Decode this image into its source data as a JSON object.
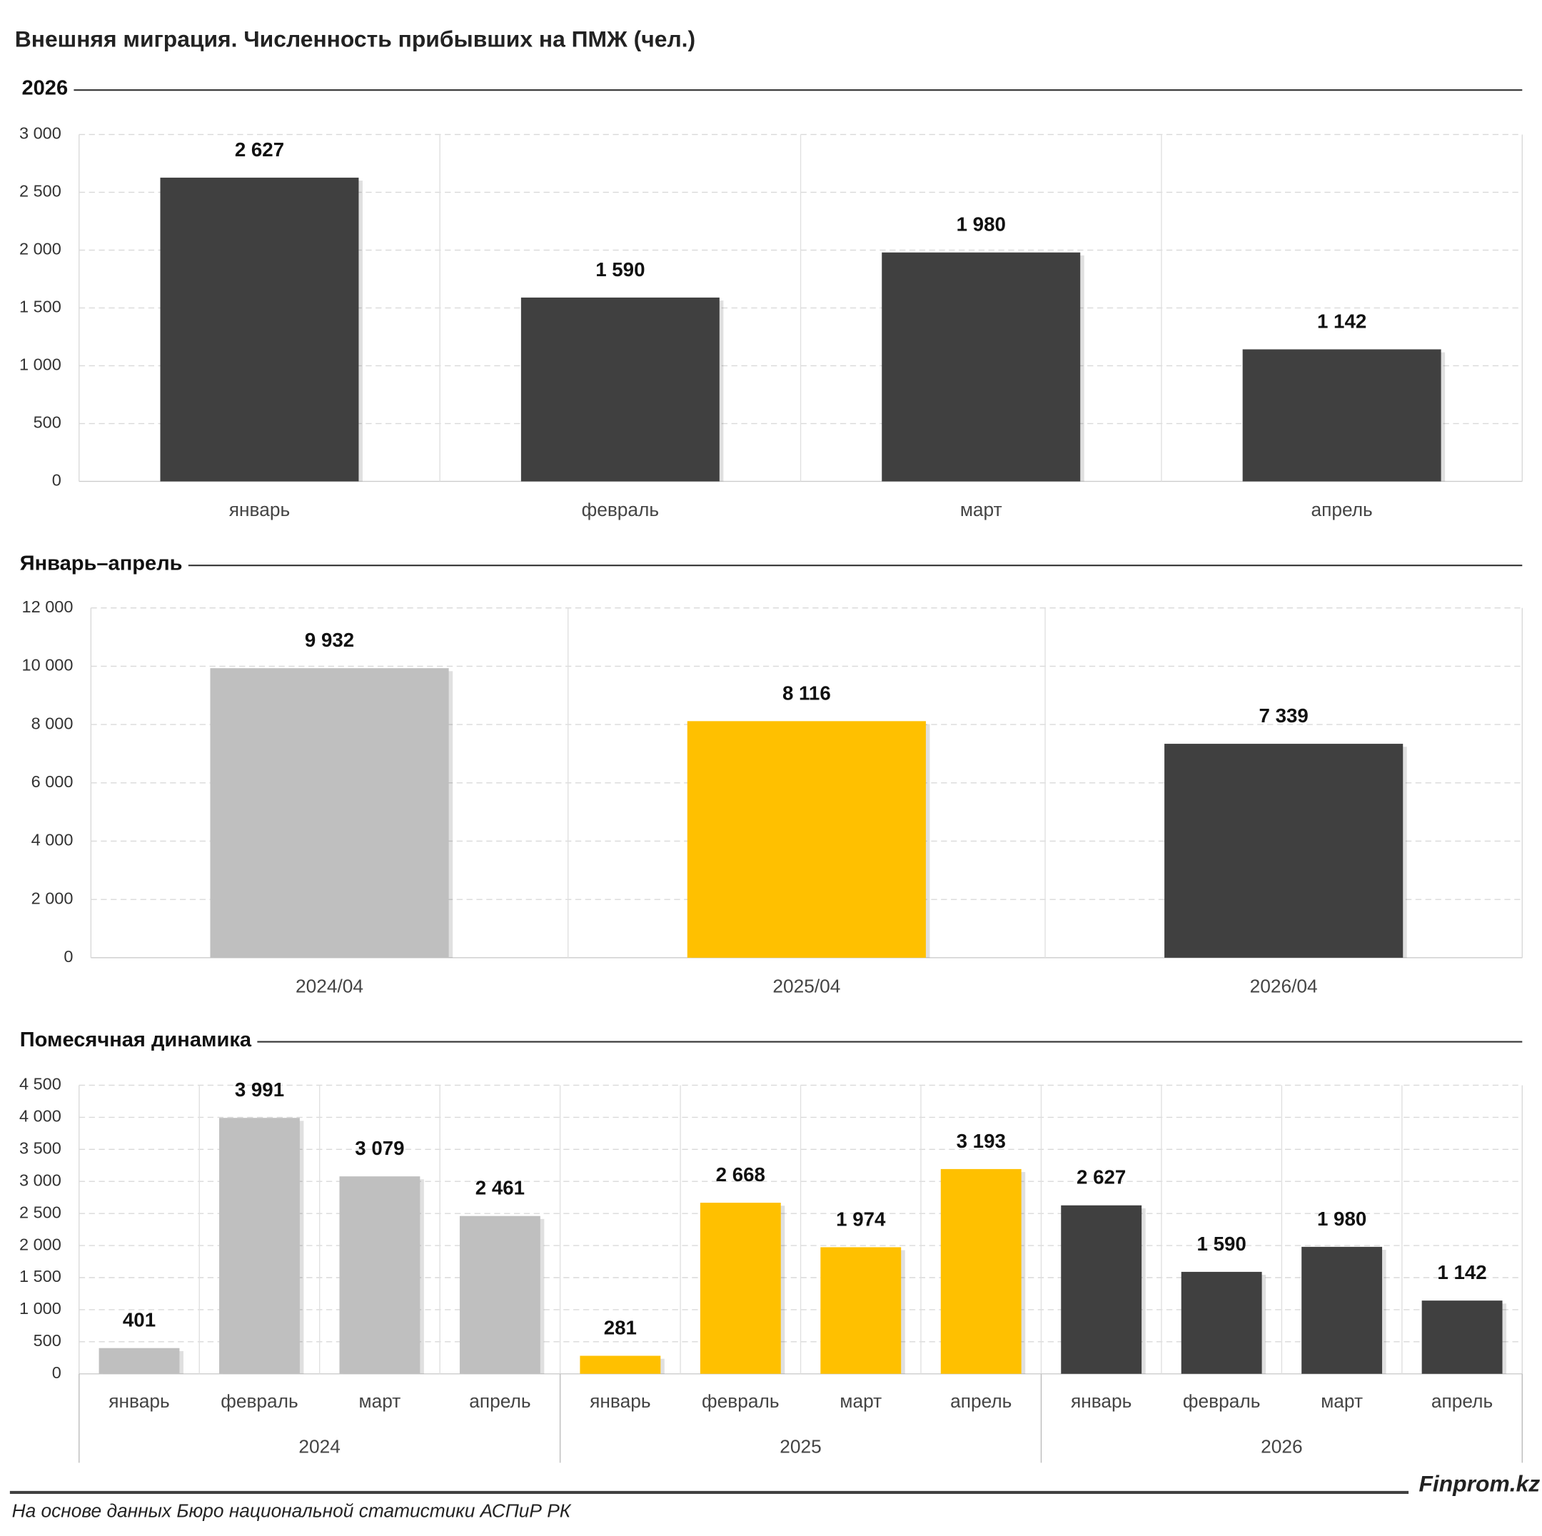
{
  "title": "Внешняя миграция. Численность прибывших на ПМЖ (чел.)",
  "source": "На основе данных Бюро национальной статистики АСПиР РК",
  "brand": "Finprom.kz",
  "chart_data": [
    {
      "type": "bar",
      "title": "2026",
      "categories": [
        "январь",
        "февраль",
        "март",
        "апрель"
      ],
      "values": [
        2627,
        1590,
        1980,
        1142
      ],
      "value_labels": [
        "2 627",
        "1 590",
        "1 980",
        "1 142"
      ],
      "colors": [
        "#404040",
        "#404040",
        "#404040",
        "#404040"
      ],
      "ylim": [
        0,
        3000
      ],
      "yticks": [
        0,
        500,
        {
          "value": 1000,
          "label": "1 000"
        },
        {
          "value": 1500,
          "label": "1 500"
        },
        {
          "value": 2000,
          "label": "2 000"
        },
        {
          "value": 2500,
          "label": "2 500"
        },
        {
          "value": 3000,
          "label": "3 000"
        }
      ],
      "grid": true
    },
    {
      "type": "bar",
      "title": "Январь–апрель",
      "categories": [
        "2024/04",
        "2025/04",
        "2026/04"
      ],
      "values": [
        9932,
        8116,
        7339
      ],
      "value_labels": [
        "9 932",
        "8 116",
        "7 339"
      ],
      "colors": [
        "#bfbfbf",
        "#ffc000",
        "#404040"
      ],
      "ylim": [
        0,
        12000
      ],
      "yticks": [
        0,
        {
          "value": 2000,
          "label": "2 000"
        },
        {
          "value": 4000,
          "label": "4 000"
        },
        {
          "value": 6000,
          "label": "6 000"
        },
        {
          "value": 8000,
          "label": "8 000"
        },
        {
          "value": 10000,
          "label": "10 000"
        },
        {
          "value": 12000,
          "label": "12 000"
        }
      ],
      "grid": true
    },
    {
      "type": "grouped-bar",
      "title": "Помесячная динамика",
      "groups": [
        {
          "label": "2024",
          "color": "#bfbfbf",
          "categories": [
            "январь",
            "февраль",
            "март",
            "апрель"
          ],
          "values": [
            401,
            3991,
            3079,
            2461
          ],
          "value_labels": [
            "401",
            "3 991",
            "3 079",
            "2 461"
          ]
        },
        {
          "label": "2025",
          "color": "#ffc000",
          "categories": [
            "январь",
            "февраль",
            "март",
            "апрель"
          ],
          "values": [
            281,
            2668,
            1974,
            3193
          ],
          "value_labels": [
            "281",
            "2 668",
            "1 974",
            "3 193"
          ]
        },
        {
          "label": "2026",
          "color": "#404040",
          "categories": [
            "январь",
            "февраль",
            "март",
            "апрель"
          ],
          "values": [
            2627,
            1590,
            1980,
            1142
          ],
          "value_labels": [
            "2 627",
            "1 590",
            "1 980",
            "1 142"
          ]
        }
      ],
      "ylim": [
        0,
        4500
      ],
      "yticks": [
        0,
        500,
        {
          "value": 1000,
          "label": "1 000"
        },
        {
          "value": 1500,
          "label": "1 500"
        },
        {
          "value": 2000,
          "label": "2 000"
        },
        {
          "value": 2500,
          "label": "2 500"
        },
        {
          "value": 3000,
          "label": "3 000"
        },
        {
          "value": 3500,
          "label": "3 500"
        },
        {
          "value": 4000,
          "label": "4 000"
        },
        {
          "value": 4500,
          "label": "4 500"
        }
      ],
      "grid": true
    }
  ]
}
